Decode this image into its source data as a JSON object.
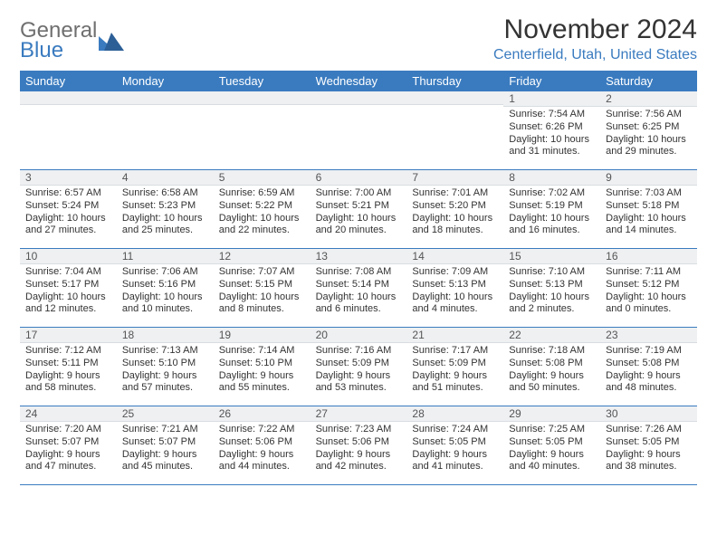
{
  "logo": {
    "general": "General",
    "blue": "Blue"
  },
  "title": "November 2024",
  "location": "Centerfield, Utah, United States",
  "colors": {
    "header_bg": "#3a7bbf",
    "header_text": "#ffffff",
    "band_bg": "#eef0f2",
    "week_border": "#3a7bbf",
    "location_color": "#3a7bbf",
    "logo_gray": "#6f6f6f"
  },
  "weekdays": [
    "Sunday",
    "Monday",
    "Tuesday",
    "Wednesday",
    "Thursday",
    "Friday",
    "Saturday"
  ],
  "weeks": [
    [
      {
        "empty": true
      },
      {
        "empty": true
      },
      {
        "empty": true
      },
      {
        "empty": true
      },
      {
        "empty": true
      },
      {
        "n": "1",
        "sunrise": "7:54 AM",
        "sunset": "6:26 PM",
        "daylight": "10 hours and 31 minutes."
      },
      {
        "n": "2",
        "sunrise": "7:56 AM",
        "sunset": "6:25 PM",
        "daylight": "10 hours and 29 minutes."
      }
    ],
    [
      {
        "n": "3",
        "sunrise": "6:57 AM",
        "sunset": "5:24 PM",
        "daylight": "10 hours and 27 minutes."
      },
      {
        "n": "4",
        "sunrise": "6:58 AM",
        "sunset": "5:23 PM",
        "daylight": "10 hours and 25 minutes."
      },
      {
        "n": "5",
        "sunrise": "6:59 AM",
        "sunset": "5:22 PM",
        "daylight": "10 hours and 22 minutes."
      },
      {
        "n": "6",
        "sunrise": "7:00 AM",
        "sunset": "5:21 PM",
        "daylight": "10 hours and 20 minutes."
      },
      {
        "n": "7",
        "sunrise": "7:01 AM",
        "sunset": "5:20 PM",
        "daylight": "10 hours and 18 minutes."
      },
      {
        "n": "8",
        "sunrise": "7:02 AM",
        "sunset": "5:19 PM",
        "daylight": "10 hours and 16 minutes."
      },
      {
        "n": "9",
        "sunrise": "7:03 AM",
        "sunset": "5:18 PM",
        "daylight": "10 hours and 14 minutes."
      }
    ],
    [
      {
        "n": "10",
        "sunrise": "7:04 AM",
        "sunset": "5:17 PM",
        "daylight": "10 hours and 12 minutes."
      },
      {
        "n": "11",
        "sunrise": "7:06 AM",
        "sunset": "5:16 PM",
        "daylight": "10 hours and 10 minutes."
      },
      {
        "n": "12",
        "sunrise": "7:07 AM",
        "sunset": "5:15 PM",
        "daylight": "10 hours and 8 minutes."
      },
      {
        "n": "13",
        "sunrise": "7:08 AM",
        "sunset": "5:14 PM",
        "daylight": "10 hours and 6 minutes."
      },
      {
        "n": "14",
        "sunrise": "7:09 AM",
        "sunset": "5:13 PM",
        "daylight": "10 hours and 4 minutes."
      },
      {
        "n": "15",
        "sunrise": "7:10 AM",
        "sunset": "5:13 PM",
        "daylight": "10 hours and 2 minutes."
      },
      {
        "n": "16",
        "sunrise": "7:11 AM",
        "sunset": "5:12 PM",
        "daylight": "10 hours and 0 minutes."
      }
    ],
    [
      {
        "n": "17",
        "sunrise": "7:12 AM",
        "sunset": "5:11 PM",
        "daylight": "9 hours and 58 minutes."
      },
      {
        "n": "18",
        "sunrise": "7:13 AM",
        "sunset": "5:10 PM",
        "daylight": "9 hours and 57 minutes."
      },
      {
        "n": "19",
        "sunrise": "7:14 AM",
        "sunset": "5:10 PM",
        "daylight": "9 hours and 55 minutes."
      },
      {
        "n": "20",
        "sunrise": "7:16 AM",
        "sunset": "5:09 PM",
        "daylight": "9 hours and 53 minutes."
      },
      {
        "n": "21",
        "sunrise": "7:17 AM",
        "sunset": "5:09 PM",
        "daylight": "9 hours and 51 minutes."
      },
      {
        "n": "22",
        "sunrise": "7:18 AM",
        "sunset": "5:08 PM",
        "daylight": "9 hours and 50 minutes."
      },
      {
        "n": "23",
        "sunrise": "7:19 AM",
        "sunset": "5:08 PM",
        "daylight": "9 hours and 48 minutes."
      }
    ],
    [
      {
        "n": "24",
        "sunrise": "7:20 AM",
        "sunset": "5:07 PM",
        "daylight": "9 hours and 47 minutes."
      },
      {
        "n": "25",
        "sunrise": "7:21 AM",
        "sunset": "5:07 PM",
        "daylight": "9 hours and 45 minutes."
      },
      {
        "n": "26",
        "sunrise": "7:22 AM",
        "sunset": "5:06 PM",
        "daylight": "9 hours and 44 minutes."
      },
      {
        "n": "27",
        "sunrise": "7:23 AM",
        "sunset": "5:06 PM",
        "daylight": "9 hours and 42 minutes."
      },
      {
        "n": "28",
        "sunrise": "7:24 AM",
        "sunset": "5:05 PM",
        "daylight": "9 hours and 41 minutes."
      },
      {
        "n": "29",
        "sunrise": "7:25 AM",
        "sunset": "5:05 PM",
        "daylight": "9 hours and 40 minutes."
      },
      {
        "n": "30",
        "sunrise": "7:26 AM",
        "sunset": "5:05 PM",
        "daylight": "9 hours and 38 minutes."
      }
    ]
  ],
  "labels": {
    "sunrise": "Sunrise:",
    "sunset": "Sunset:",
    "daylight": "Daylight:"
  }
}
